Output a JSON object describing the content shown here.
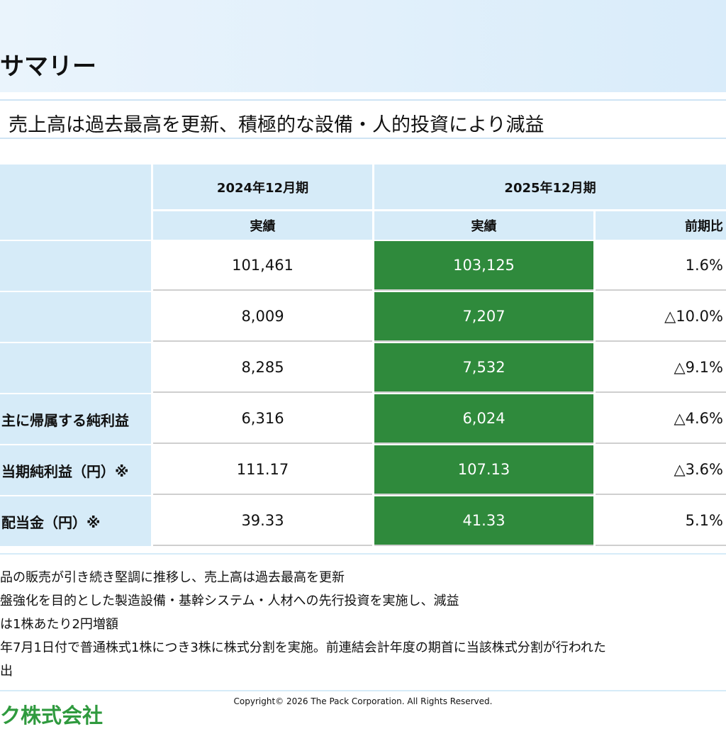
{
  "header": {
    "title": "サマリー"
  },
  "subtitle": "売上高は過去最高を更新、積極的な設備・人的投資により減益",
  "table": {
    "period_headers": [
      "2024年12月期",
      "2025年12月期"
    ],
    "sub_headers": [
      "実績",
      "実績",
      "前期比"
    ],
    "rows": [
      {
        "cells": [
          "101,461",
          "103,125",
          "1.6%"
        ]
      },
      {
        "cells": [
          "8,009",
          "7,207",
          "△10.0%"
        ]
      },
      {
        "cells": [
          "8,285",
          "7,532",
          "△9.1%"
        ]
      },
      {
        "label": "主に帰属する純利益",
        "cells": [
          "6,316",
          "6,024",
          "△4.6%"
        ]
      },
      {
        "label": "当期純利益（円）※",
        "cells": [
          "111.17",
          "107.13",
          "△3.6%"
        ]
      },
      {
        "label": "配当金（円）※",
        "cells": [
          "39.33",
          "41.33",
          "5.1%"
        ]
      }
    ]
  },
  "notes": [
    "品の販売が引き続き堅調に推移し、売上高は過去最高を更新",
    "盤強化を目的とした製造設備・基幹システム・人材への先行投資を実施し、減益",
    "は1株あたり2円増額",
    "年7月1日付で普通株式1株につき3株に株式分割を実施。前連結会計年度の期首に当該株式分割が行われた",
    "出"
  ],
  "footer": {
    "copyright": "Copyright© 2026 The Pack Corporation. All Rights Reserved.",
    "logo": "ク株式会社"
  }
}
